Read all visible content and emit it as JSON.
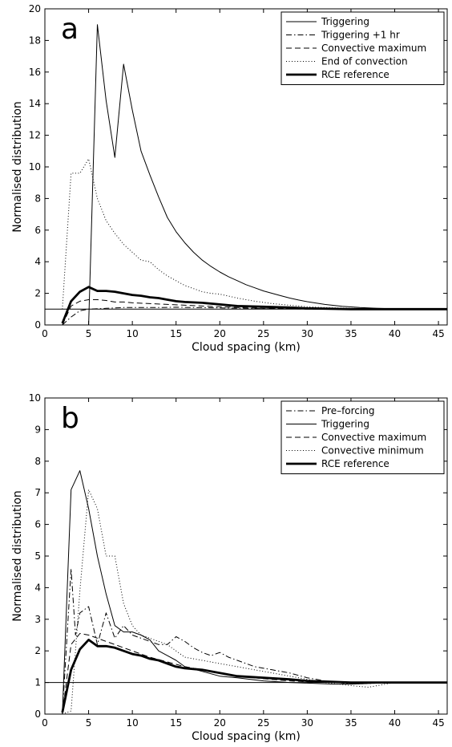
{
  "chart_data": [
    {
      "type": "line",
      "panel_label": "a",
      "xlabel": "Cloud spacing (km)",
      "ylabel": "Normalised distribution",
      "xlim": [
        0,
        46
      ],
      "ylim": [
        0,
        20
      ],
      "xticks": [
        0,
        5,
        10,
        15,
        20,
        25,
        30,
        35,
        40,
        45
      ],
      "yticks": [
        0,
        2,
        4,
        6,
        8,
        10,
        12,
        14,
        16,
        18,
        20
      ],
      "reference_line_y": 1,
      "grid": false,
      "legend_position": "top-right",
      "series": [
        {
          "name": "Triggering",
          "style": "solid",
          "x": [
            2,
            5,
            6,
            7,
            8,
            9,
            10,
            11,
            12,
            13,
            14,
            15,
            16,
            17,
            18,
            19,
            20,
            21,
            22,
            23,
            24,
            25,
            26,
            27,
            28,
            29,
            30,
            32,
            34,
            36,
            38,
            40,
            42,
            44,
            46
          ],
          "y": [
            0,
            0,
            19,
            14.2,
            10.6,
            16.5,
            13.6,
            11,
            9.5,
            8.1,
            6.8,
            5.9,
            5.2,
            4.6,
            4.1,
            3.7,
            3.35,
            3.05,
            2.8,
            2.55,
            2.35,
            2.15,
            2.0,
            1.85,
            1.7,
            1.58,
            1.47,
            1.3,
            1.18,
            1.1,
            1.05,
            1.02,
            1.0,
            1.0,
            1.0
          ]
        },
        {
          "name": "Triggering +1 hr",
          "style": "dashdot",
          "x": [
            2,
            3,
            4,
            5,
            7,
            9,
            11,
            13,
            15,
            17,
            20,
            23,
            25,
            28,
            30,
            35,
            40,
            46
          ],
          "y": [
            0,
            0.5,
            0.9,
            1.0,
            1.05,
            1.1,
            1.1,
            1.1,
            1.12,
            1.1,
            1.08,
            1.05,
            1.03,
            1.02,
            1.01,
            1.0,
            1.0,
            1.0
          ]
        },
        {
          "name": "Convective maximum",
          "style": "dashed",
          "x": [
            2,
            3,
            4,
            5,
            6,
            7,
            8,
            9,
            10,
            12,
            14,
            16,
            18,
            20,
            22,
            25,
            28,
            30,
            35,
            40,
            46
          ],
          "y": [
            0,
            1.2,
            1.5,
            1.6,
            1.6,
            1.55,
            1.45,
            1.45,
            1.4,
            1.35,
            1.3,
            1.25,
            1.2,
            1.15,
            1.1,
            1.05,
            1.02,
            1.0,
            1.0,
            1.0,
            1.0
          ]
        },
        {
          "name": "End of convection",
          "style": "dotted",
          "x": [
            2,
            3,
            4,
            5,
            6,
            7,
            8,
            9,
            10,
            11,
            12,
            13,
            14,
            15,
            16,
            17,
            18,
            19,
            20,
            22,
            24,
            26,
            28,
            30,
            32,
            35,
            40,
            46
          ],
          "y": [
            1.0,
            9.6,
            9.6,
            10.5,
            8.0,
            6.6,
            5.8,
            5.1,
            4.6,
            4.1,
            4.0,
            3.5,
            3.1,
            2.8,
            2.5,
            2.3,
            2.1,
            2.0,
            1.95,
            1.7,
            1.5,
            1.35,
            1.25,
            1.15,
            1.1,
            1.05,
            1.0,
            1.0
          ]
        },
        {
          "name": "RCE reference",
          "style": "thick",
          "x": [
            2,
            3,
            4,
            5,
            6,
            7,
            8,
            9,
            10,
            11,
            12,
            13,
            14,
            15,
            16,
            18,
            20,
            22,
            25,
            28,
            30,
            32,
            35,
            40,
            46
          ],
          "y": [
            0.1,
            1.5,
            2.1,
            2.4,
            2.15,
            2.15,
            2.1,
            2.0,
            1.9,
            1.85,
            1.75,
            1.7,
            1.6,
            1.5,
            1.45,
            1.4,
            1.3,
            1.2,
            1.15,
            1.1,
            1.05,
            1.03,
            1.0,
            1.0,
            1.0
          ]
        }
      ]
    },
    {
      "type": "line",
      "panel_label": "b",
      "xlabel": "Cloud spacing (km)",
      "ylabel": "Normalised distribution",
      "xlim": [
        0,
        46
      ],
      "ylim": [
        0,
        10
      ],
      "xticks": [
        0,
        5,
        10,
        15,
        20,
        25,
        30,
        35,
        40,
        45
      ],
      "yticks": [
        0,
        1,
        2,
        3,
        4,
        5,
        6,
        7,
        8,
        9,
        10
      ],
      "reference_line_y": 1,
      "grid": false,
      "legend_position": "top-right",
      "series": [
        {
          "name": "Pre–forcing",
          "style": "dashdot",
          "x": [
            2,
            3,
            3.5,
            4,
            5,
            6,
            7,
            8,
            9,
            10,
            11,
            12,
            13,
            14,
            15,
            16,
            17,
            18,
            19,
            20,
            21,
            22,
            24,
            26,
            28,
            30,
            32,
            35,
            40,
            46
          ],
          "y": [
            0,
            4.6,
            2.5,
            3.2,
            3.4,
            2.2,
            3.2,
            2.4,
            2.8,
            2.5,
            2.4,
            2.3,
            2.2,
            2.2,
            2.45,
            2.3,
            2.1,
            1.95,
            1.85,
            1.95,
            1.8,
            1.7,
            1.5,
            1.4,
            1.3,
            1.15,
            1.05,
            0.95,
            1.0,
            1.0
          ]
        },
        {
          "name": "Triggering",
          "style": "solid",
          "x": [
            2,
            3,
            4,
            5,
            6,
            7,
            8,
            9,
            10,
            11,
            12,
            13,
            14,
            15,
            16,
            18,
            20,
            22,
            25,
            28,
            30,
            33,
            35,
            40,
            46
          ],
          "y": [
            0,
            7.1,
            7.7,
            6.5,
            5.0,
            3.8,
            2.8,
            2.6,
            2.6,
            2.5,
            2.35,
            2.0,
            1.85,
            1.7,
            1.5,
            1.35,
            1.2,
            1.15,
            1.05,
            1.0,
            0.98,
            0.95,
            0.95,
            1.0,
            1.0
          ]
        },
        {
          "name": "Convective maximum",
          "style": "dashed",
          "x": [
            2,
            3,
            4,
            5,
            6,
            7,
            8,
            9,
            10,
            12,
            14,
            16,
            18,
            20,
            22,
            25,
            28,
            30,
            35,
            40,
            46
          ],
          "y": [
            0,
            2.2,
            2.55,
            2.5,
            2.4,
            2.3,
            2.2,
            2.1,
            2.0,
            1.8,
            1.65,
            1.5,
            1.4,
            1.3,
            1.2,
            1.12,
            1.05,
            1.02,
            1.0,
            1.0,
            1.0
          ]
        },
        {
          "name": "Convective minimum",
          "style": "dotted",
          "x": [
            2,
            3,
            4,
            5,
            6,
            7,
            8,
            9,
            10,
            11,
            12,
            13,
            14,
            15,
            16,
            18,
            20,
            22,
            25,
            28,
            30,
            32,
            35,
            37,
            40,
            46
          ],
          "y": [
            0,
            0.1,
            3.9,
            7.1,
            6.5,
            5.0,
            5.0,
            3.5,
            2.8,
            2.5,
            2.4,
            2.3,
            2.2,
            2.0,
            1.8,
            1.7,
            1.6,
            1.5,
            1.35,
            1.2,
            1.1,
            1.0,
            0.9,
            0.85,
            1.0,
            1.0
          ]
        },
        {
          "name": "RCE reference",
          "style": "thick",
          "x": [
            2,
            3,
            4,
            5,
            6,
            7,
            8,
            9,
            10,
            11,
            12,
            13,
            14,
            15,
            16,
            18,
            20,
            22,
            25,
            28,
            30,
            32,
            35,
            40,
            46
          ],
          "y": [
            0.05,
            1.4,
            2.05,
            2.35,
            2.15,
            2.15,
            2.1,
            2.0,
            1.9,
            1.85,
            1.75,
            1.7,
            1.6,
            1.5,
            1.45,
            1.4,
            1.3,
            1.2,
            1.15,
            1.1,
            1.05,
            1.03,
            1.0,
            1.0,
            1.0
          ]
        }
      ]
    }
  ]
}
